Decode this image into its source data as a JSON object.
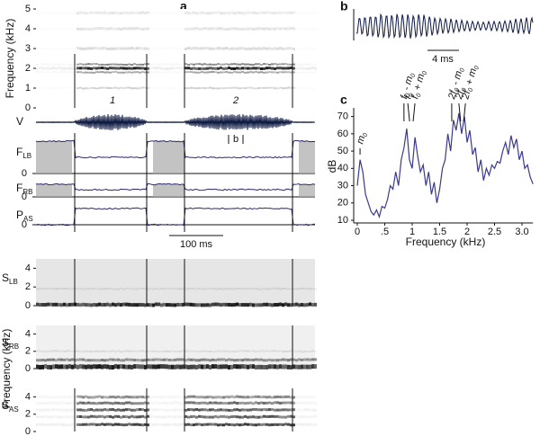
{
  "chart_data": [
    {
      "type": "spectrogram",
      "panel": "a",
      "y_label": "Frequency (kHz)",
      "ylim": [
        0,
        5
      ],
      "yticks": [
        0,
        1,
        2,
        3,
        4,
        5
      ],
      "annotations": [
        "1",
        "2"
      ]
    },
    {
      "type": "traces",
      "traces": [
        {
          "main": "V"
        },
        {
          "main": "F",
          "sub": "LB",
          "yticks": [
            0
          ]
        },
        {
          "main": "F",
          "sub": "RB",
          "yticks": [
            0
          ]
        },
        {
          "main": "P",
          "sub": "AS",
          "yticks": [
            0
          ]
        }
      ],
      "annotation": "b",
      "scale_bar": "100 ms"
    },
    {
      "type": "spectrograms",
      "y_label": "Frequency (kHz)",
      "ylim": [
        0,
        5
      ],
      "yticks": [
        0,
        2,
        4
      ],
      "panels": [
        {
          "main": "S",
          "sub": "LB"
        },
        {
          "main": "S",
          "sub": "RB"
        },
        {
          "main": "S",
          "sub": "AS"
        }
      ]
    },
    {
      "type": "waveform",
      "panel": "b",
      "scale_bar": "4 ms"
    },
    {
      "type": "line",
      "panel": "c",
      "x_label": "Frequency (kHz)",
      "y_label": "dB",
      "color": "#3a3a8c",
      "xlim": [
        0,
        3.2
      ],
      "xticks": [
        0,
        {
          "value": 0.5,
          "label": ".5"
        },
        1,
        1.5,
        2,
        2.5,
        {
          "value": 3,
          "label": "3.0"
        }
      ],
      "ylim": [
        10,
        75
      ],
      "yticks": [
        10,
        20,
        30,
        40,
        50,
        60,
        70
      ],
      "annotations": [
        {
          "text": "m0",
          "x": 0.05
        },
        {
          "text": "f0 - m0",
          "x": 0.85
        },
        {
          "text": "f0",
          "x": 0.92
        },
        {
          "text": "f0 + m0",
          "x": 1.05
        },
        {
          "text": "2f0 - m0",
          "x": 1.72
        },
        {
          "text": "2f0",
          "x": 1.85
        },
        {
          "text": "2f0 + m0",
          "x": 1.97
        }
      ],
      "x": [
        0,
        0.05,
        0.1,
        0.15,
        0.2,
        0.25,
        0.3,
        0.35,
        0.4,
        0.45,
        0.5,
        0.55,
        0.6,
        0.65,
        0.7,
        0.75,
        0.8,
        0.85,
        0.9,
        0.95,
        1,
        1.05,
        1.1,
        1.15,
        1.2,
        1.25,
        1.3,
        1.35,
        1.4,
        1.45,
        1.5,
        1.55,
        1.6,
        1.65,
        1.7,
        1.75,
        1.8,
        1.85,
        1.9,
        1.95,
        2,
        2.05,
        2.1,
        2.15,
        2.2,
        2.25,
        2.3,
        2.35,
        2.4,
        2.45,
        2.5,
        2.55,
        2.6,
        2.65,
        2.7,
        2.75,
        2.8,
        2.85,
        2.9,
        2.95,
        3,
        3.05,
        3.1,
        3.15,
        3.2
      ],
      "values": [
        30,
        45,
        38,
        25,
        20,
        15,
        13,
        16,
        12,
        18,
        17,
        22,
        30,
        28,
        38,
        30,
        45,
        52,
        63,
        45,
        40,
        58,
        47,
        38,
        42,
        30,
        38,
        25,
        32,
        20,
        28,
        40,
        45,
        60,
        50,
        68,
        62,
        72,
        60,
        70,
        55,
        62,
        48,
        52,
        38,
        45,
        33,
        40,
        36,
        42,
        40,
        44,
        43,
        50,
        55,
        48,
        59,
        52,
        57,
        45,
        50,
        40,
        42,
        35,
        31
      ]
    }
  ]
}
